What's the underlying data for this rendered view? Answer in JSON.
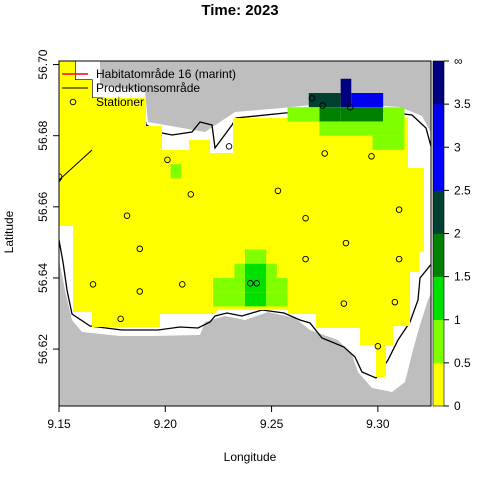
{
  "chart_data": {
    "type": "heatmap",
    "title": "Time: 2023",
    "xlabel": "Longitude",
    "ylabel": "Latitude",
    "xlim": [
      9.15,
      9.325
    ],
    "ylim": [
      56.604,
      56.701
    ],
    "x_ticks": [
      "9.15",
      "9.20",
      "9.25",
      "9.30"
    ],
    "y_ticks": [
      "56.62",
      "56.64",
      "56.66",
      "56.68",
      "56.70"
    ],
    "cell_size": [
      0.005,
      0.004
    ],
    "colorbar": {
      "bins": [
        {
          "from": 0,
          "to": 0.5,
          "color": "#ffff00"
        },
        {
          "from": 0.5,
          "to": 1,
          "color": "#80ff00"
        },
        {
          "from": 1,
          "to": 1.5,
          "color": "#00e000"
        },
        {
          "from": 1.5,
          "to": 2,
          "color": "#008000"
        },
        {
          "from": 2,
          "to": 2.5,
          "color": "#004030"
        },
        {
          "from": 2.5,
          "to": 3,
          "color": "#0000ff"
        },
        {
          "from": 3,
          "to": 3.5,
          "color": "#0000ee"
        },
        {
          "from": 3.5,
          "to": "∞",
          "color": "#000080"
        }
      ],
      "ticks": [
        "0",
        "0.5",
        "1",
        "1.5",
        "2",
        "2.5",
        "3",
        "3.5",
        "∞"
      ]
    },
    "legend": {
      "placement": "top-left",
      "entries": [
        {
          "label": "Habitatområde 16 (marint)",
          "kind": "line",
          "color": "#ff0000"
        },
        {
          "label": "Produktionsområde",
          "kind": "line",
          "color": "#000000"
        },
        {
          "label": "Stationer",
          "kind": "point",
          "color": "#000000"
        }
      ]
    },
    "overlay_cells": [
      {
        "lon": [
          9.2825,
          9.2875
        ],
        "lat": [
          56.688,
          56.696
        ],
        "color": "#000080"
      },
      {
        "lon": [
          9.2875,
          9.3025
        ],
        "lat": [
          56.688,
          56.692
        ],
        "color": "#0000ee"
      },
      {
        "lon": [
          9.2675,
          9.2825
        ],
        "lat": [
          56.688,
          56.692
        ],
        "color": "#004030"
      },
      {
        "lon": [
          9.2725,
          9.2825
        ],
        "lat": [
          56.684,
          56.688
        ],
        "color": "#008000"
      },
      {
        "lon": [
          9.2825,
          9.3025
        ],
        "lat": [
          56.684,
          56.688
        ],
        "color": "#008000"
      },
      {
        "lon": [
          9.2575,
          9.2725
        ],
        "lat": [
          56.684,
          56.688
        ],
        "color": "#80ff00"
      },
      {
        "lon": [
          9.3025,
          9.3125
        ],
        "lat": [
          56.684,
          56.688
        ],
        "color": "#80ff00"
      },
      {
        "lon": [
          9.2725,
          9.3125
        ],
        "lat": [
          56.68,
          56.684
        ],
        "color": "#80ff00"
      },
      {
        "lon": [
          9.2975,
          9.3125
        ],
        "lat": [
          56.676,
          56.68
        ],
        "color": "#80ff00"
      },
      {
        "lon": [
          9.2025,
          9.2075
        ],
        "lat": [
          56.668,
          56.672
        ],
        "color": "#80ff00"
      },
      {
        "lon": [
          9.2375,
          9.2475
        ],
        "lat": [
          56.644,
          56.648
        ],
        "color": "#80ff00"
      },
      {
        "lon": [
          9.2325,
          9.2375
        ],
        "lat": [
          56.64,
          56.644
        ],
        "color": "#80ff00"
      },
      {
        "lon": [
          9.2375,
          9.2475
        ],
        "lat": [
          56.64,
          56.644
        ],
        "color": "#00e000"
      },
      {
        "lon": [
          9.2475,
          9.2525
        ],
        "lat": [
          56.64,
          56.644
        ],
        "color": "#80ff00"
      },
      {
        "lon": [
          9.2225,
          9.2375
        ],
        "lat": [
          56.636,
          56.64
        ],
        "color": "#80ff00"
      },
      {
        "lon": [
          9.2375,
          9.2475
        ],
        "lat": [
          56.636,
          56.64
        ],
        "color": "#00e000"
      },
      {
        "lon": [
          9.2475,
          9.2575
        ],
        "lat": [
          56.636,
          56.64
        ],
        "color": "#80ff00"
      },
      {
        "lon": [
          9.2225,
          9.2375
        ],
        "lat": [
          56.632,
          56.636
        ],
        "color": "#80ff00"
      },
      {
        "lon": [
          9.2375,
          9.2475
        ],
        "lat": [
          56.632,
          56.636
        ],
        "color": "#00e000"
      },
      {
        "lon": [
          9.2475,
          9.2575
        ],
        "lat": [
          56.632,
          56.636
        ],
        "color": "#80ff00"
      }
    ],
    "stations": [
      {
        "lon": 9.269,
        "lat": 56.6905
      },
      {
        "lon": 9.274,
        "lat": 56.6885
      },
      {
        "lon": 9.287,
        "lat": 56.688
      },
      {
        "lon": 9.23,
        "lat": 56.677
      },
      {
        "lon": 9.201,
        "lat": 56.6732
      },
      {
        "lon": 9.275,
        "lat": 56.675
      },
      {
        "lon": 9.297,
        "lat": 56.6742
      },
      {
        "lon": 9.15,
        "lat": 56.6685
      },
      {
        "lon": 9.212,
        "lat": 56.6635
      },
      {
        "lon": 9.253,
        "lat": 56.6645
      },
      {
        "lon": 9.182,
        "lat": 56.6575
      },
      {
        "lon": 9.266,
        "lat": 56.6568
      },
      {
        "lon": 9.31,
        "lat": 56.6592
      },
      {
        "lon": 9.285,
        "lat": 56.6498
      },
      {
        "lon": 9.188,
        "lat": 56.6482
      },
      {
        "lon": 9.266,
        "lat": 56.6453
      },
      {
        "lon": 9.31,
        "lat": 56.6453
      },
      {
        "lon": 9.166,
        "lat": 56.6382
      },
      {
        "lon": 9.208,
        "lat": 56.6382
      },
      {
        "lon": 9.24,
        "lat": 56.6385
      },
      {
        "lon": 9.243,
        "lat": 56.6385
      },
      {
        "lon": 9.188,
        "lat": 56.6362
      },
      {
        "lon": 9.284,
        "lat": 56.6328
      },
      {
        "lon": 9.308,
        "lat": 56.6332
      },
      {
        "lon": 9.179,
        "lat": 56.6285
      },
      {
        "lon": 9.3,
        "lat": 56.6208
      }
    ]
  }
}
